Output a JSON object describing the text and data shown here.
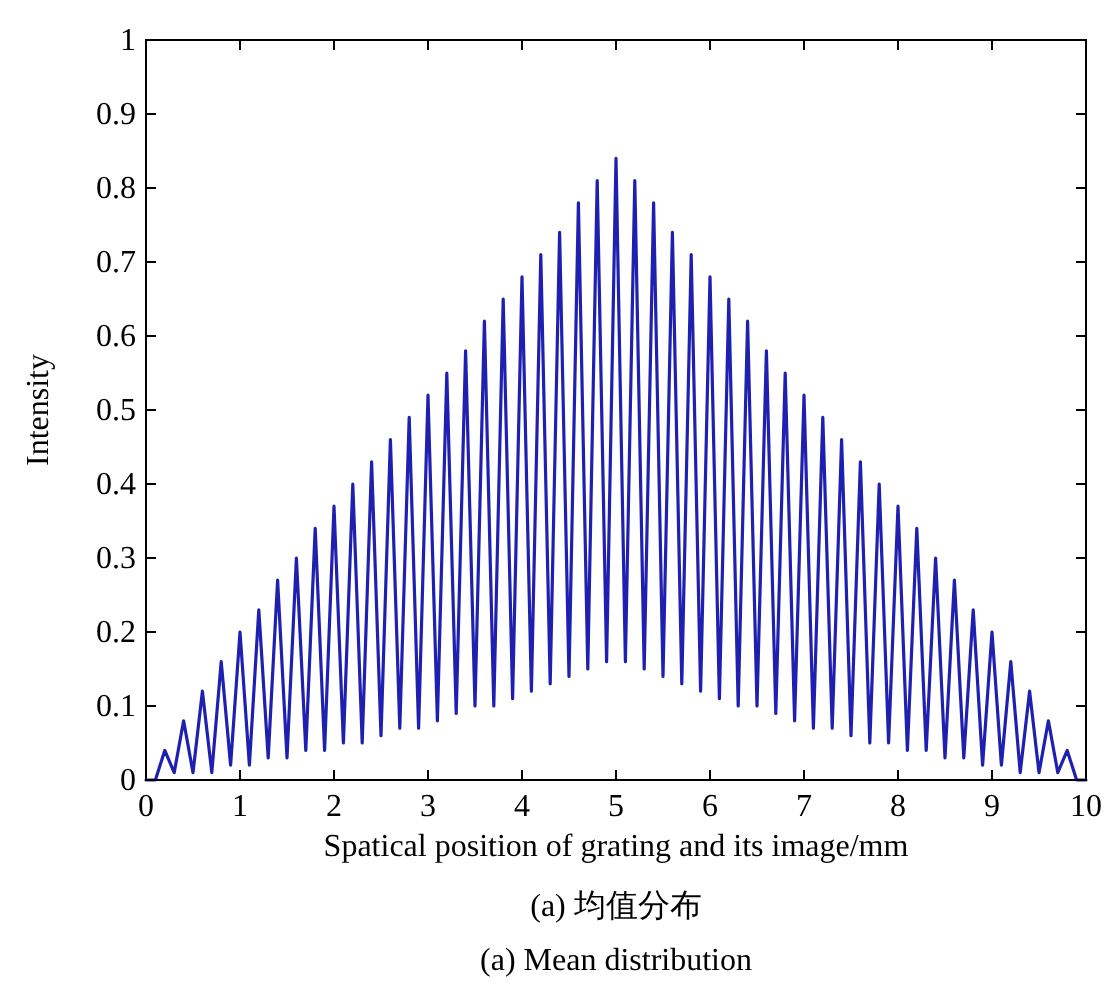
{
  "chart_data": {
    "type": "line",
    "xlabel": "Spatical position of grating and its image/mm",
    "ylabel": "Intensity",
    "annotations": [
      "(a) 均值分布",
      "(a) Mean distribution"
    ],
    "x": [
      0,
      0.1,
      0.2,
      0.3,
      0.4,
      0.5,
      0.6,
      0.7,
      0.8,
      0.9,
      1,
      1.1,
      1.2,
      1.3,
      1.4,
      1.5,
      1.6,
      1.7,
      1.8,
      1.9,
      2,
      2.1,
      2.2,
      2.3,
      2.4,
      2.5,
      2.6,
      2.7,
      2.8,
      2.9,
      3,
      3.1,
      3.2,
      3.3,
      3.4,
      3.5,
      3.6,
      3.7,
      3.8,
      3.9,
      4,
      4.1,
      4.2,
      4.3,
      4.4,
      4.5,
      4.6,
      4.7,
      4.8,
      4.9,
      5,
      5.1,
      5.2,
      5.3,
      5.4,
      5.5,
      5.6,
      5.7,
      5.8,
      5.9,
      6,
      6.1,
      6.2,
      6.3,
      6.4,
      6.5,
      6.6,
      6.7,
      6.8,
      6.9,
      7,
      7.1,
      7.2,
      7.3,
      7.4,
      7.5,
      7.6,
      7.7,
      7.8,
      7.9,
      8,
      8.1,
      8.2,
      8.3,
      8.4,
      8.5,
      8.6,
      8.7,
      8.8,
      8.9,
      9,
      9.1,
      9.2,
      9.3,
      9.4,
      9.5,
      9.6,
      9.7,
      9.8,
      9.9,
      10
    ],
    "series": [
      {
        "color": "#2020b0",
        "values": [
          0,
          0.0,
          0.04,
          0.01,
          0.08,
          0.01,
          0.12,
          0.01,
          0.16,
          0.02,
          0.2,
          0.02,
          0.23,
          0.03,
          0.27,
          0.03,
          0.3,
          0.04,
          0.34,
          0.04,
          0.37,
          0.05,
          0.4,
          0.05,
          0.43,
          0.06,
          0.46,
          0.07,
          0.49,
          0.07,
          0.52,
          0.08,
          0.55,
          0.09,
          0.58,
          0.1,
          0.62,
          0.1,
          0.65,
          0.11,
          0.68,
          0.12,
          0.71,
          0.13,
          0.74,
          0.14,
          0.78,
          0.15,
          0.81,
          0.16,
          0.84,
          0.16,
          0.81,
          0.15,
          0.78,
          0.14,
          0.74,
          0.13,
          0.71,
          0.12,
          0.68,
          0.11,
          0.65,
          0.1,
          0.62,
          0.1,
          0.58,
          0.09,
          0.55,
          0.08,
          0.52,
          0.07,
          0.49,
          0.07,
          0.46,
          0.06,
          0.43,
          0.05,
          0.4,
          0.05,
          0.37,
          0.04,
          0.34,
          0.04,
          0.3,
          0.03,
          0.27,
          0.03,
          0.23,
          0.02,
          0.2,
          0.02,
          0.16,
          0.01,
          0.12,
          0.01,
          0.08,
          0.01,
          0.04,
          0.0,
          0
        ]
      }
    ],
    "xlim": [
      0,
      10
    ],
    "xticks": [
      0,
      1,
      2,
      3,
      4,
      5,
      6,
      7,
      8,
      9,
      10
    ],
    "ylim": [
      0,
      1
    ],
    "yticks": [
      0,
      0.1,
      0.2,
      0.3,
      0.4,
      0.5,
      0.6,
      0.7,
      0.8,
      0.9,
      1
    ],
    "marker": "none",
    "line_style": "solid"
  }
}
